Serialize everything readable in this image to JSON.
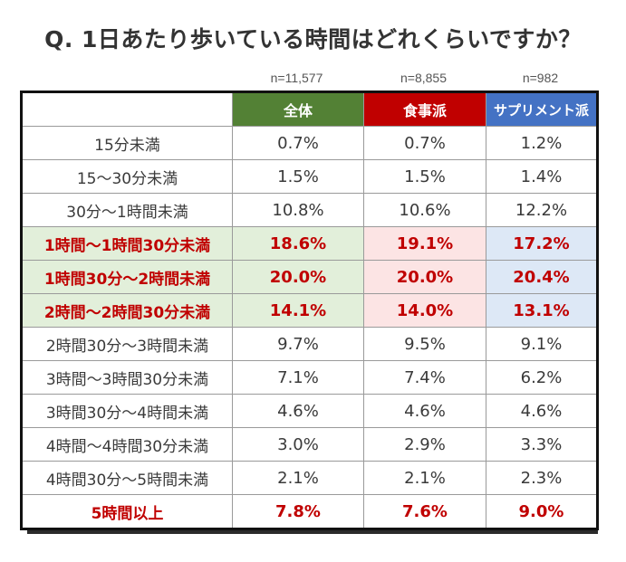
{
  "title": "Q. 1日あたり歩いている時間はどれくらいですか？",
  "sample_sizes": {
    "all": "n=11,577",
    "food": "n=8,855",
    "supplement": "n=982"
  },
  "columns": {
    "all": "全体",
    "food": "食事派",
    "supplement": "サプリメント派"
  },
  "colors": {
    "all": "#538135",
    "food": "#c00000",
    "supplement": "#4472c4",
    "highlight_text": "#c00000"
  },
  "rows": [
    {
      "label": "15分未満",
      "all": "0.7%",
      "food": "0.7%",
      "supplement": "1.2%"
    },
    {
      "label": "15～30分未満",
      "all": "1.5%",
      "food": "1.5%",
      "supplement": "1.4%"
    },
    {
      "label": "30分～1時間未満",
      "all": "10.8%",
      "food": "10.6%",
      "supplement": "12.2%"
    },
    {
      "label": "1時間～1時間30分未満",
      "all": "18.6%",
      "food": "19.1%",
      "supplement": "17.2%"
    },
    {
      "label": "1時間30分～2時間未満",
      "all": "20.0%",
      "food": "20.0%",
      "supplement": "20.4%"
    },
    {
      "label": "2時間～2時間30分未満",
      "all": "14.1%",
      "food": "14.0%",
      "supplement": "13.1%"
    },
    {
      "label": "2時間30分～3時間未満",
      "all": "9.7%",
      "food": "9.5%",
      "supplement": "9.1%"
    },
    {
      "label": "3時間～3時間30分未満",
      "all": "7.1%",
      "food": "7.4%",
      "supplement": "6.2%"
    },
    {
      "label": "3時間30分～4時間未満",
      "all": "4.6%",
      "food": "4.6%",
      "supplement": "4.6%"
    },
    {
      "label": "4時間～4時間30分未満",
      "all": "3.0%",
      "food": "2.9%",
      "supplement": "3.3%"
    },
    {
      "label": "4時間30分～5時間未満",
      "all": "2.1%",
      "food": "2.1%",
      "supplement": "2.3%"
    },
    {
      "label": "5時間以上",
      "all": "7.8%",
      "food": "7.6%",
      "supplement": "9.0%"
    }
  ]
}
